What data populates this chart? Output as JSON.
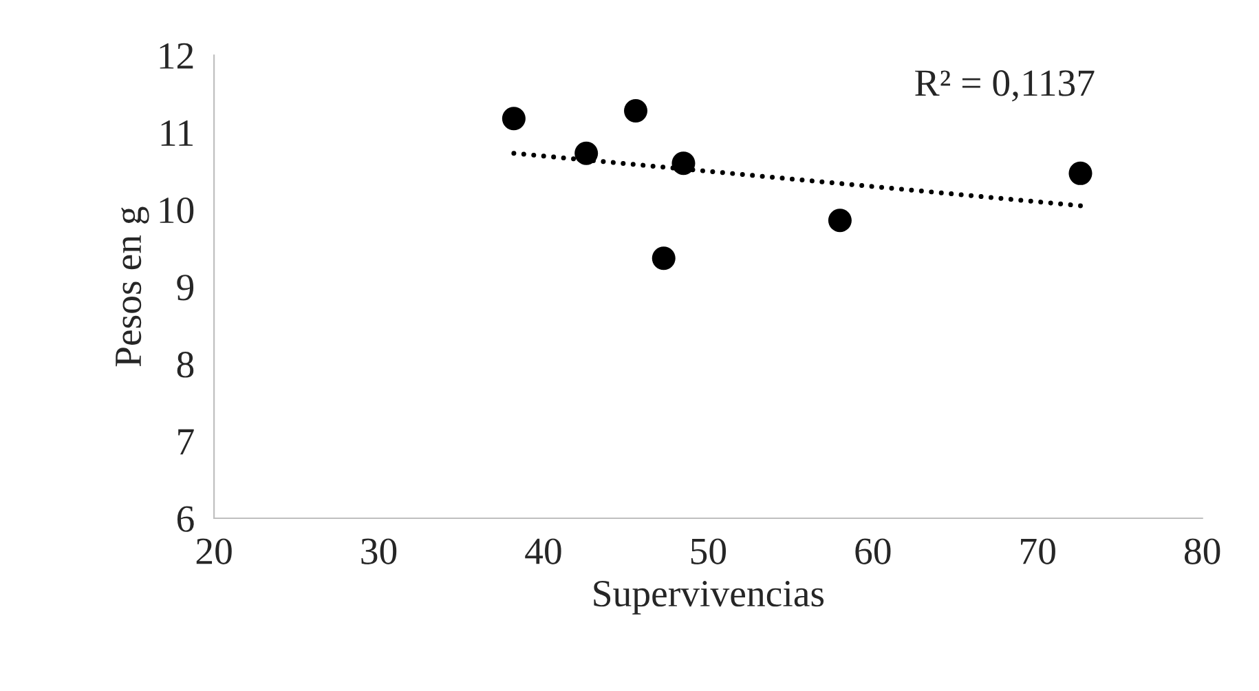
{
  "chart_data": {
    "type": "scatter",
    "xlabel": "Supervivencias",
    "ylabel": "Pesos en g",
    "xlim": [
      20,
      80
    ],
    "xticks": [
      20,
      30,
      40,
      50,
      60,
      70,
      80
    ],
    "ylim": [
      6,
      12
    ],
    "yticks": [
      6,
      7,
      8,
      9,
      10,
      11,
      12
    ],
    "grid": false,
    "marker": "circle",
    "series": [
      {
        "color": "#000000",
        "x": [
          38.2,
          42.6,
          45.6,
          48.5,
          47.3,
          58.0,
          72.6
        ],
        "values": [
          11.18,
          10.73,
          11.28,
          10.6,
          9.37,
          9.86,
          10.47
        ]
      },
      {
        "type": "line",
        "color": "#000000",
        "line_style": "dotted",
        "marker": "none",
        "x": [
          38.2,
          72.6
        ],
        "values": [
          10.73,
          10.05
        ]
      }
    ],
    "annotations": [
      "R² = 0,1137"
    ]
  }
}
